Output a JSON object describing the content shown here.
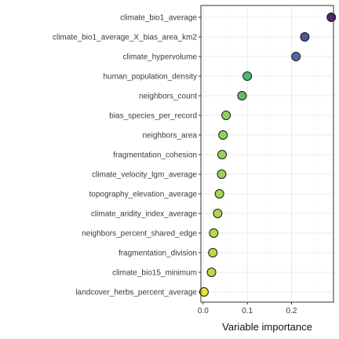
{
  "chart_data": {
    "type": "scatter",
    "orientation": "horizontal",
    "xlabel": "Variable importance",
    "ylabel": "",
    "xlim": [
      -0.005,
      0.295
    ],
    "xticks": [
      {
        "value": 0.0,
        "label": "0.0"
      },
      {
        "value": 0.1,
        "label": "0.1"
      },
      {
        "value": 0.2,
        "label": "0.2"
      }
    ],
    "grid": true,
    "legend": "none",
    "colors": {
      "panel_border": "#333333",
      "grid_major": "#ebebeb",
      "grid_minor": "#f5f5f5",
      "point_stroke": "#1a1a1a"
    },
    "points": [
      {
        "variable": "climate_bio1_average",
        "value": 0.29,
        "color": "#4b2a6e"
      },
      {
        "variable": "climate_bio1_average_X_bias_area_km2",
        "value": 0.23,
        "color": "#4a5896"
      },
      {
        "variable": "climate_hypervolume",
        "value": 0.21,
        "color": "#5069a0"
      },
      {
        "variable": "human_population_density",
        "value": 0.1,
        "color": "#4fb77a"
      },
      {
        "variable": "neighbors_count",
        "value": 0.088,
        "color": "#62ba6f"
      },
      {
        "variable": "bias_species_per_record",
        "value": 0.052,
        "color": "#8fd15b"
      },
      {
        "variable": "neighbors_area",
        "value": 0.045,
        "color": "#92d159"
      },
      {
        "variable": "fragmentation_cohesion",
        "value": 0.043,
        "color": "#93d259"
      },
      {
        "variable": "climate_velocity_lgm_average",
        "value": 0.042,
        "color": "#98d457"
      },
      {
        "variable": "topography_elevation_average",
        "value": 0.037,
        "color": "#a2d64f"
      },
      {
        "variable": "climate_aridity_index_average",
        "value": 0.033,
        "color": "#a9d84e"
      },
      {
        "variable": "neighbors_percent_shared_edge",
        "value": 0.024,
        "color": "#b5da49"
      },
      {
        "variable": "fragmentation_division",
        "value": 0.022,
        "color": "#b8da48"
      },
      {
        "variable": "climate_bio15_minimum",
        "value": 0.019,
        "color": "#bddb45"
      },
      {
        "variable": "landcover_herbs_percent_average",
        "value": 0.002,
        "color": "#e4e33a"
      }
    ]
  }
}
